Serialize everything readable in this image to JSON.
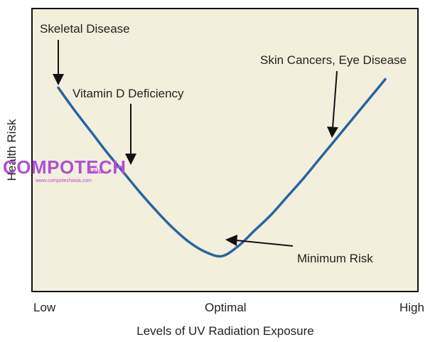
{
  "chart_data": {
    "type": "line",
    "title": "",
    "xlabel": "Levels of UV Radiation Exposure",
    "ylabel": "Health Risk",
    "x_tick_labels": [
      "Low",
      "Optimal",
      "High"
    ],
    "series": [
      {
        "x": [
          0.0,
          0.05,
          0.1,
          0.15,
          0.2,
          0.25,
          0.3,
          0.35,
          0.4,
          0.45,
          0.5,
          0.55,
          0.6,
          0.65,
          0.7,
          0.75,
          0.8,
          0.85,
          0.9,
          0.95,
          1.0
        ],
        "y": [
          0.72,
          0.64,
          0.565,
          0.49,
          0.42,
          0.35,
          0.285,
          0.225,
          0.175,
          0.14,
          0.125,
          0.16,
          0.215,
          0.27,
          0.335,
          0.4,
          0.47,
          0.54,
          0.61,
          0.68,
          0.75
        ]
      }
    ],
    "xlim": [
      0,
      1
    ],
    "ylim": [
      0,
      1
    ],
    "annotations": [
      {
        "text": "Skeletal Disease",
        "points_to_x": 0.0
      },
      {
        "text": "Vitamin D Deficiency",
        "points_to_x": 0.2
      },
      {
        "text": "Skin Cancers, Eye Disease",
        "points_to_x": 0.84
      },
      {
        "text": "Minimum Risk",
        "points_to_x": 0.5
      }
    ],
    "colors": {
      "background": "#f3efdd",
      "line": "#2c63a0",
      "frame": "#111111"
    }
  },
  "watermark": {
    "name": "COMPOTECH",
    "suffix": "Asia",
    "url": "www.compotechasia.com"
  }
}
